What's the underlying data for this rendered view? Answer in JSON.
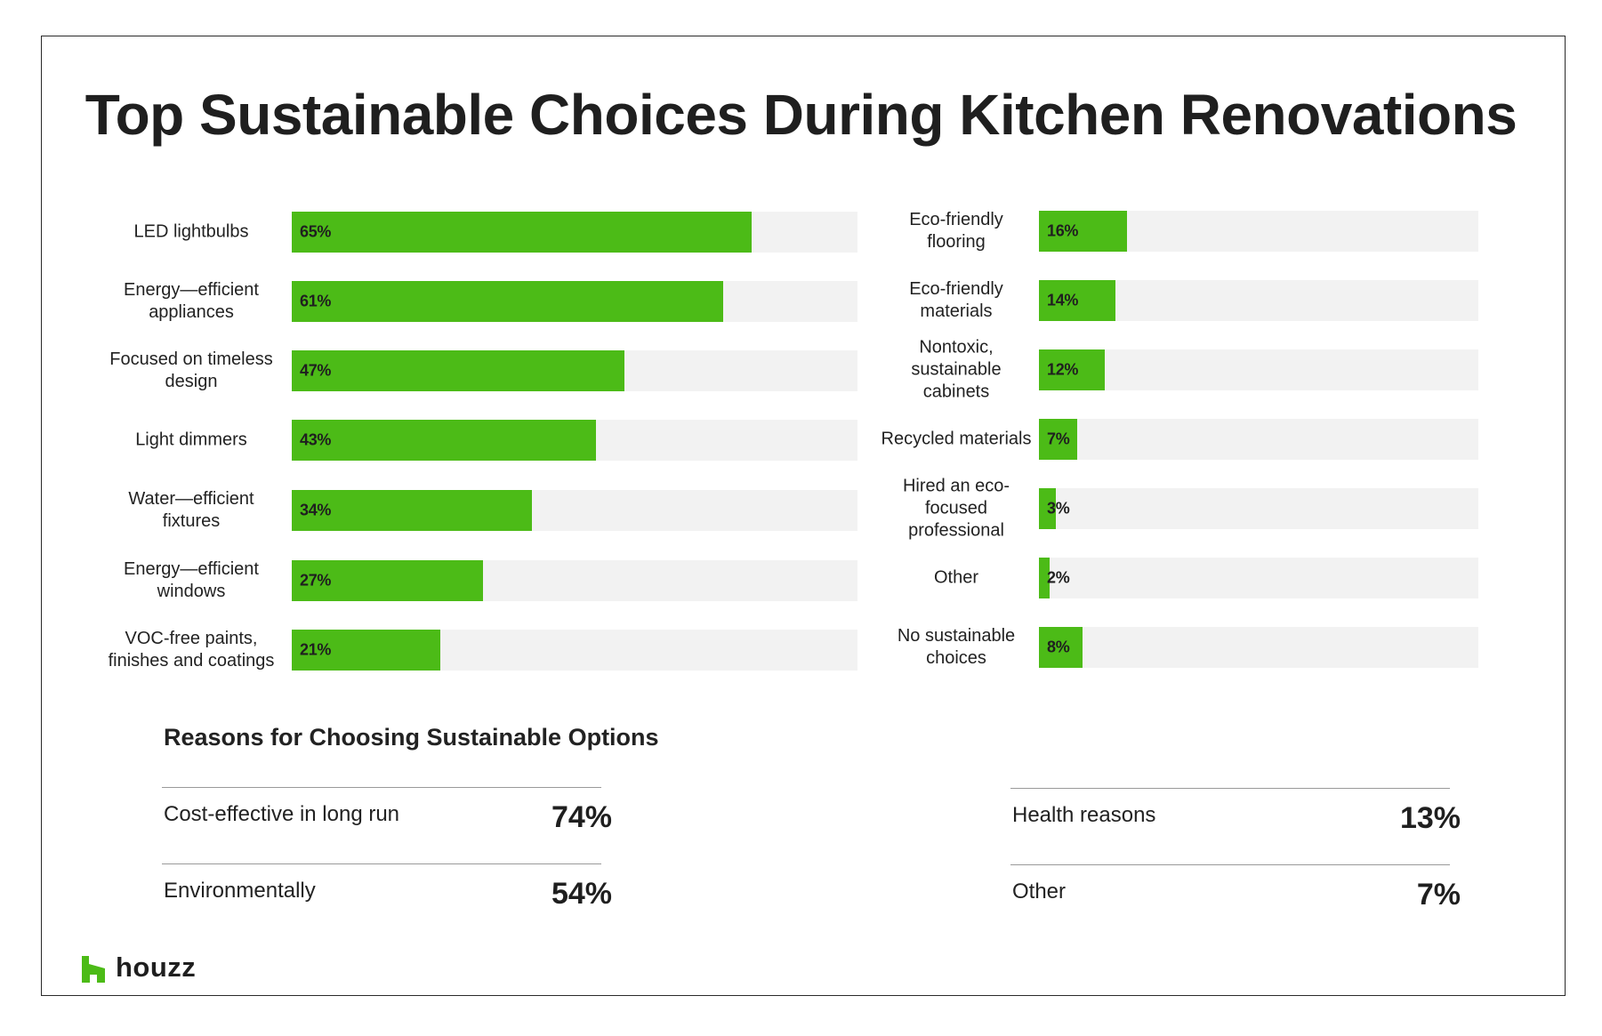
{
  "title": "Top Sustainable Choices During Kitchen Renovations",
  "chart_data": [
    {
      "type": "bar",
      "orientation": "horizontal",
      "categories": [
        "LED lightbulbs",
        "Energy—efficient appliances",
        "Focused on timeless design",
        "Light dimmers",
        "Water—efficient fixtures",
        "Energy—efficient windows",
        "VOC-free paints, finishes and coatings"
      ],
      "values": [
        65,
        61,
        47,
        43,
        34,
        27,
        21
      ],
      "value_labels": [
        "65%",
        "61%",
        "47%",
        "43%",
        "34%",
        "27%",
        "21%"
      ],
      "xlim": [
        0,
        80
      ],
      "grid": false,
      "bar_color": "#4cbb17",
      "track_color": "#f2f2f2"
    },
    {
      "type": "bar",
      "orientation": "horizontal",
      "categories": [
        "Eco-friendly flooring",
        "Eco-friendly materials",
        "Nontoxic, sustainable cabinets",
        "Recycled materials",
        "Hired an eco-focused professional",
        "Other",
        "No sustainable choices"
      ],
      "values": [
        16,
        14,
        12,
        7,
        3,
        2,
        8
      ],
      "value_labels": [
        "16%",
        "14%",
        "12%",
        "7%",
        "3%",
        "2%",
        "8%"
      ],
      "xlim": [
        0,
        80
      ],
      "grid": false,
      "bar_color": "#4cbb17",
      "track_color": "#f2f2f2"
    }
  ],
  "reasons": {
    "title": "Reasons for Choosing Sustainable Options",
    "items": [
      {
        "label": "Cost-effective in long run",
        "value": "74%"
      },
      {
        "label": "Environmentally",
        "value": "54%"
      },
      {
        "label": "Health reasons",
        "value": "13%"
      },
      {
        "label": "Other",
        "value": "7%"
      }
    ]
  },
  "logo": {
    "text": "houzz",
    "color": "#4cbb17",
    "icon": "houzz-logo-icon"
  }
}
